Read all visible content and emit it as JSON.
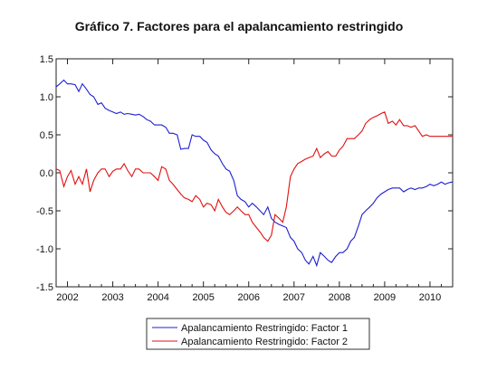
{
  "chart_data": {
    "type": "line",
    "title": "Gráfico 7. Factores para el apalancamiento restringido",
    "xlabel": "",
    "ylabel": "",
    "xlim": [
      2001.75,
      2010.5
    ],
    "ylim": [
      -1.5,
      1.5
    ],
    "y_ticks": [
      "1.5",
      "1.0",
      "0.5",
      "0.0",
      "-0.5",
      "-1.0",
      "-1.5"
    ],
    "y_tick_values": [
      1.5,
      1.0,
      0.5,
      0.0,
      -0.5,
      -1.0,
      -1.5
    ],
    "x_ticks": [
      "2002",
      "2003",
      "2004",
      "2005",
      "2006",
      "2007",
      "2008",
      "2009",
      "2010"
    ],
    "x_tick_values": [
      2002,
      2003,
      2004,
      2005,
      2006,
      2007,
      2008,
      2009,
      2010
    ],
    "grid": false,
    "legend": "bottom-center",
    "series": [
      {
        "name": "Apalancamiento Restringido: Factor 1",
        "color": "#1f1fd0",
        "x": [
          2001.75,
          2001.83,
          2001.92,
          2002.0,
          2002.08,
          2002.17,
          2002.25,
          2002.33,
          2002.42,
          2002.5,
          2002.58,
          2002.67,
          2002.75,
          2002.83,
          2002.92,
          2003.0,
          2003.08,
          2003.17,
          2003.25,
          2003.33,
          2003.42,
          2003.5,
          2003.58,
          2003.67,
          2003.75,
          2003.83,
          2003.92,
          2004.0,
          2004.08,
          2004.17,
          2004.25,
          2004.33,
          2004.42,
          2004.5,
          2004.58,
          2004.67,
          2004.75,
          2004.83,
          2004.92,
          2005.0,
          2005.08,
          2005.17,
          2005.25,
          2005.33,
          2005.42,
          2005.5,
          2005.58,
          2005.67,
          2005.75,
          2005.83,
          2005.92,
          2006.0,
          2006.08,
          2006.17,
          2006.25,
          2006.33,
          2006.42,
          2006.5,
          2006.58,
          2006.67,
          2006.75,
          2006.83,
          2006.92,
          2007.0,
          2007.08,
          2007.17,
          2007.25,
          2007.33,
          2007.42,
          2007.5,
          2007.58,
          2007.67,
          2007.75,
          2007.83,
          2007.92,
          2008.0,
          2008.08,
          2008.17,
          2008.25,
          2008.33,
          2008.42,
          2008.5,
          2008.58,
          2008.67,
          2008.75,
          2008.83,
          2008.92,
          2009.0,
          2009.08,
          2009.17,
          2009.25,
          2009.33,
          2009.42,
          2009.5,
          2009.58,
          2009.67,
          2009.75,
          2009.83,
          2009.92,
          2010.0,
          2010.08,
          2010.17,
          2010.25,
          2010.33,
          2010.42,
          2010.5
        ],
        "y": [
          1.13,
          1.17,
          1.22,
          1.17,
          1.17,
          1.16,
          1.07,
          1.17,
          1.1,
          1.03,
          1.0,
          0.9,
          0.92,
          0.85,
          0.82,
          0.8,
          0.78,
          0.8,
          0.77,
          0.78,
          0.77,
          0.76,
          0.77,
          0.74,
          0.7,
          0.68,
          0.63,
          0.63,
          0.63,
          0.6,
          0.52,
          0.52,
          0.5,
          0.31,
          0.32,
          0.32,
          0.5,
          0.48,
          0.48,
          0.43,
          0.4,
          0.3,
          0.25,
          0.22,
          0.12,
          0.05,
          0.02,
          -0.1,
          -0.3,
          -0.35,
          -0.38,
          -0.45,
          -0.4,
          -0.45,
          -0.5,
          -0.55,
          -0.45,
          -0.6,
          -0.65,
          -0.68,
          -0.7,
          -0.72,
          -0.85,
          -0.9,
          -1.0,
          -1.05,
          -1.15,
          -1.2,
          -1.1,
          -1.22,
          -1.05,
          -1.1,
          -1.15,
          -1.18,
          -1.1,
          -1.05,
          -1.05,
          -1.0,
          -0.9,
          -0.85,
          -0.7,
          -0.55,
          -0.5,
          -0.45,
          -0.4,
          -0.33,
          -0.28,
          -0.25,
          -0.22,
          -0.2,
          -0.2,
          -0.2,
          -0.25,
          -0.22,
          -0.2,
          -0.22,
          -0.2,
          -0.2,
          -0.18,
          -0.15,
          -0.17,
          -0.15,
          -0.12,
          -0.15,
          -0.13,
          -0.12
        ]
      },
      {
        "name": "Apalancamiento Restringido: Factor 2",
        "color": "#e01010",
        "x": [
          2001.75,
          2001.83,
          2001.92,
          2002.0,
          2002.08,
          2002.17,
          2002.25,
          2002.33,
          2002.42,
          2002.5,
          2002.58,
          2002.67,
          2002.75,
          2002.83,
          2002.92,
          2003.0,
          2003.08,
          2003.17,
          2003.25,
          2003.33,
          2003.42,
          2003.5,
          2003.58,
          2003.67,
          2003.75,
          2003.83,
          2003.92,
          2004.0,
          2004.08,
          2004.17,
          2004.25,
          2004.33,
          2004.42,
          2004.5,
          2004.58,
          2004.67,
          2004.75,
          2004.83,
          2004.92,
          2005.0,
          2005.08,
          2005.17,
          2005.25,
          2005.33,
          2005.42,
          2005.5,
          2005.58,
          2005.67,
          2005.75,
          2005.83,
          2005.92,
          2006.0,
          2006.08,
          2006.17,
          2006.25,
          2006.33,
          2006.42,
          2006.5,
          2006.58,
          2006.67,
          2006.75,
          2006.83,
          2006.92,
          2007.0,
          2007.08,
          2007.17,
          2007.25,
          2007.33,
          2007.42,
          2007.5,
          2007.58,
          2007.67,
          2007.75,
          2007.83,
          2007.92,
          2008.0,
          2008.08,
          2008.17,
          2008.25,
          2008.33,
          2008.42,
          2008.5,
          2008.58,
          2008.67,
          2008.75,
          2008.83,
          2008.92,
          2009.0,
          2009.08,
          2009.17,
          2009.25,
          2009.33,
          2009.42,
          2009.5,
          2009.58,
          2009.67,
          2009.75,
          2009.83,
          2009.92,
          2010.0,
          2010.08,
          2010.17,
          2010.25,
          2010.33,
          2010.42,
          2010.5
        ],
        "y": [
          0.05,
          0.03,
          -0.18,
          -0.05,
          0.03,
          -0.15,
          -0.05,
          -0.15,
          0.05,
          -0.25,
          -0.1,
          0.0,
          0.05,
          0.05,
          -0.05,
          0.02,
          0.05,
          0.05,
          0.12,
          0.03,
          -0.05,
          0.05,
          0.05,
          0.0,
          0.0,
          0.0,
          -0.05,
          -0.1,
          0.08,
          0.05,
          -0.1,
          -0.15,
          -0.22,
          -0.28,
          -0.33,
          -0.35,
          -0.38,
          -0.3,
          -0.35,
          -0.45,
          -0.4,
          -0.42,
          -0.5,
          -0.35,
          -0.45,
          -0.52,
          -0.55,
          -0.5,
          -0.45,
          -0.5,
          -0.55,
          -0.55,
          -0.65,
          -0.72,
          -0.78,
          -0.85,
          -0.9,
          -0.82,
          -0.55,
          -0.6,
          -0.65,
          -0.45,
          -0.05,
          0.05,
          0.12,
          0.15,
          0.18,
          0.2,
          0.22,
          0.32,
          0.2,
          0.25,
          0.28,
          0.22,
          0.22,
          0.3,
          0.35,
          0.45,
          0.45,
          0.45,
          0.5,
          0.55,
          0.65,
          0.7,
          0.73,
          0.75,
          0.78,
          0.8,
          0.65,
          0.68,
          0.63,
          0.7,
          0.62,
          0.62,
          0.6,
          0.62,
          0.55,
          0.48,
          0.5,
          0.48,
          0.48,
          0.48,
          0.48,
          0.48,
          0.48,
          0.48
        ]
      }
    ]
  }
}
